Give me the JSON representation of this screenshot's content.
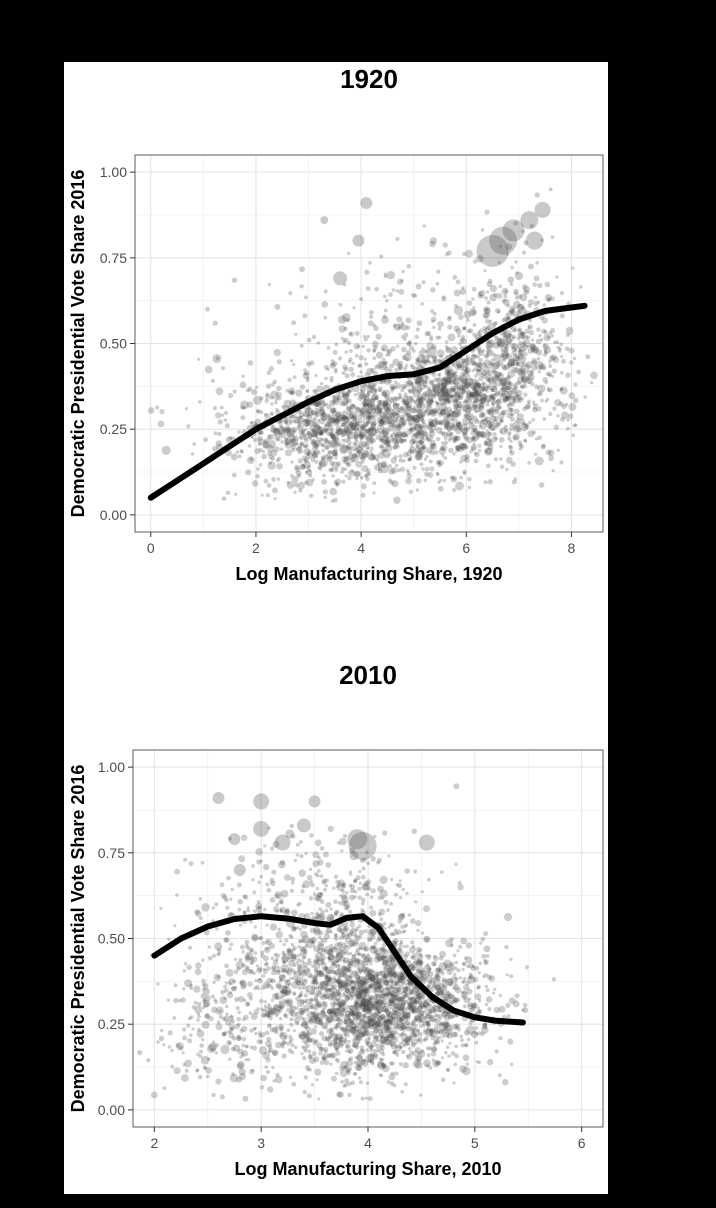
{
  "chart_data": [
    {
      "type": "scatter",
      "title": "1920",
      "xlabel": "Log Manufacturing Share, 1920",
      "ylabel": "Democratic Presidential Vote Share 2016",
      "xlim": [
        -0.3,
        8.6
      ],
      "ylim": [
        -0.05,
        1.05
      ],
      "xticks": [
        0,
        2,
        4,
        6,
        8
      ],
      "yticks": [
        0.0,
        0.25,
        0.5,
        0.75,
        1.0
      ],
      "xtick_labels": [
        "0",
        "2",
        "4",
        "6",
        "8"
      ],
      "ytick_labels": [
        "0.00",
        "0.25",
        "0.50",
        "0.75",
        "1.00"
      ],
      "grid": true,
      "point_color": "#4d4d4d",
      "line_color": "#000000",
      "smooth_line": {
        "x": [
          0,
          0.5,
          1,
          1.5,
          2,
          2.5,
          3,
          3.5,
          4,
          4.5,
          5,
          5.5,
          6,
          6.5,
          7,
          7.5,
          8,
          8.25
        ],
        "y": [
          0.05,
          0.1,
          0.15,
          0.2,
          0.25,
          0.29,
          0.33,
          0.365,
          0.39,
          0.405,
          0.41,
          0.43,
          0.48,
          0.53,
          0.57,
          0.595,
          0.605,
          0.61
        ]
      },
      "highlight_points": [
        {
          "x": 6.5,
          "y": 0.77,
          "size": 16
        },
        {
          "x": 6.7,
          "y": 0.8,
          "size": 14
        },
        {
          "x": 6.9,
          "y": 0.83,
          "size": 11
        },
        {
          "x": 7.2,
          "y": 0.86,
          "size": 9
        },
        {
          "x": 7.45,
          "y": 0.89,
          "size": 8
        },
        {
          "x": 7.3,
          "y": 0.8,
          "size": 9
        },
        {
          "x": 4.1,
          "y": 0.91,
          "size": 6
        },
        {
          "x": 3.95,
          "y": 0.8,
          "size": 6
        },
        {
          "x": 3.6,
          "y": 0.69,
          "size": 7
        },
        {
          "x": 3.3,
          "y": 0.86,
          "size": 4
        }
      ],
      "cloud": [
        {
          "cx": 3.5,
          "cy": 0.24,
          "sx": 0.9,
          "sy": 0.07,
          "n": 650,
          "seed": 11
        },
        {
          "cx": 5.8,
          "cy": 0.35,
          "sx": 0.8,
          "sy": 0.1,
          "n": 900,
          "seed": 12
        },
        {
          "cx": 4.8,
          "cy": 0.28,
          "sx": 1.2,
          "sy": 0.09,
          "n": 500,
          "seed": 13
        },
        {
          "cx": 7.0,
          "cy": 0.5,
          "sx": 0.6,
          "sy": 0.13,
          "n": 350,
          "seed": 14
        },
        {
          "cx": 2.6,
          "cy": 0.3,
          "sx": 1.0,
          "sy": 0.13,
          "n": 150,
          "seed": 15
        },
        {
          "cx": 5.0,
          "cy": 0.55,
          "sx": 1.3,
          "sy": 0.13,
          "n": 180,
          "seed": 16
        }
      ]
    },
    {
      "type": "scatter",
      "title": "2010",
      "xlabel": "Log Manufacturing Share, 2010",
      "ylabel": "Democratic Presidential Vote Share 2016",
      "xlim": [
        1.8,
        6.2
      ],
      "ylim": [
        -0.05,
        1.05
      ],
      "xticks": [
        2,
        3,
        4,
        5,
        6
      ],
      "yticks": [
        0.0,
        0.25,
        0.5,
        0.75,
        1.0
      ],
      "xtick_labels": [
        "2",
        "3",
        "4",
        "5",
        "6"
      ],
      "ytick_labels": [
        "0.00",
        "0.25",
        "0.50",
        "0.75",
        "1.00"
      ],
      "grid": true,
      "point_color": "#4d4d4d",
      "line_color": "#000000",
      "smooth_line": {
        "x": [
          2.0,
          2.25,
          2.5,
          2.75,
          3.0,
          3.25,
          3.5,
          3.65,
          3.8,
          3.95,
          4.1,
          4.25,
          4.4,
          4.6,
          4.8,
          5.0,
          5.2,
          5.45
        ],
        "y": [
          0.45,
          0.5,
          0.535,
          0.557,
          0.565,
          0.558,
          0.545,
          0.54,
          0.56,
          0.565,
          0.53,
          0.46,
          0.39,
          0.33,
          0.29,
          0.27,
          0.26,
          0.255
        ]
      },
      "highlight_points": [
        {
          "x": 3.95,
          "y": 0.77,
          "size": 14
        },
        {
          "x": 3.9,
          "y": 0.79,
          "size": 10
        },
        {
          "x": 4.55,
          "y": 0.78,
          "size": 8
        },
        {
          "x": 3.0,
          "y": 0.9,
          "size": 8
        },
        {
          "x": 3.5,
          "y": 0.9,
          "size": 6
        },
        {
          "x": 2.6,
          "y": 0.91,
          "size": 6
        },
        {
          "x": 3.2,
          "y": 0.78,
          "size": 8
        },
        {
          "x": 3.4,
          "y": 0.83,
          "size": 7
        },
        {
          "x": 2.8,
          "y": 0.7,
          "size": 6
        },
        {
          "x": 3.0,
          "y": 0.82,
          "size": 8
        },
        {
          "x": 2.75,
          "y": 0.79,
          "size": 6
        }
      ],
      "cloud": [
        {
          "cx": 4.0,
          "cy": 0.32,
          "sx": 0.45,
          "sy": 0.11,
          "n": 1500,
          "seed": 21
        },
        {
          "cx": 3.3,
          "cy": 0.38,
          "sx": 0.55,
          "sy": 0.16,
          "n": 550,
          "seed": 22
        },
        {
          "cx": 2.6,
          "cy": 0.22,
          "sx": 0.35,
          "sy": 0.1,
          "n": 150,
          "seed": 23
        },
        {
          "cx": 4.6,
          "cy": 0.3,
          "sx": 0.35,
          "sy": 0.09,
          "n": 350,
          "seed": 24
        },
        {
          "cx": 3.6,
          "cy": 0.62,
          "sx": 0.45,
          "sy": 0.1,
          "n": 200,
          "seed": 25
        }
      ]
    }
  ]
}
